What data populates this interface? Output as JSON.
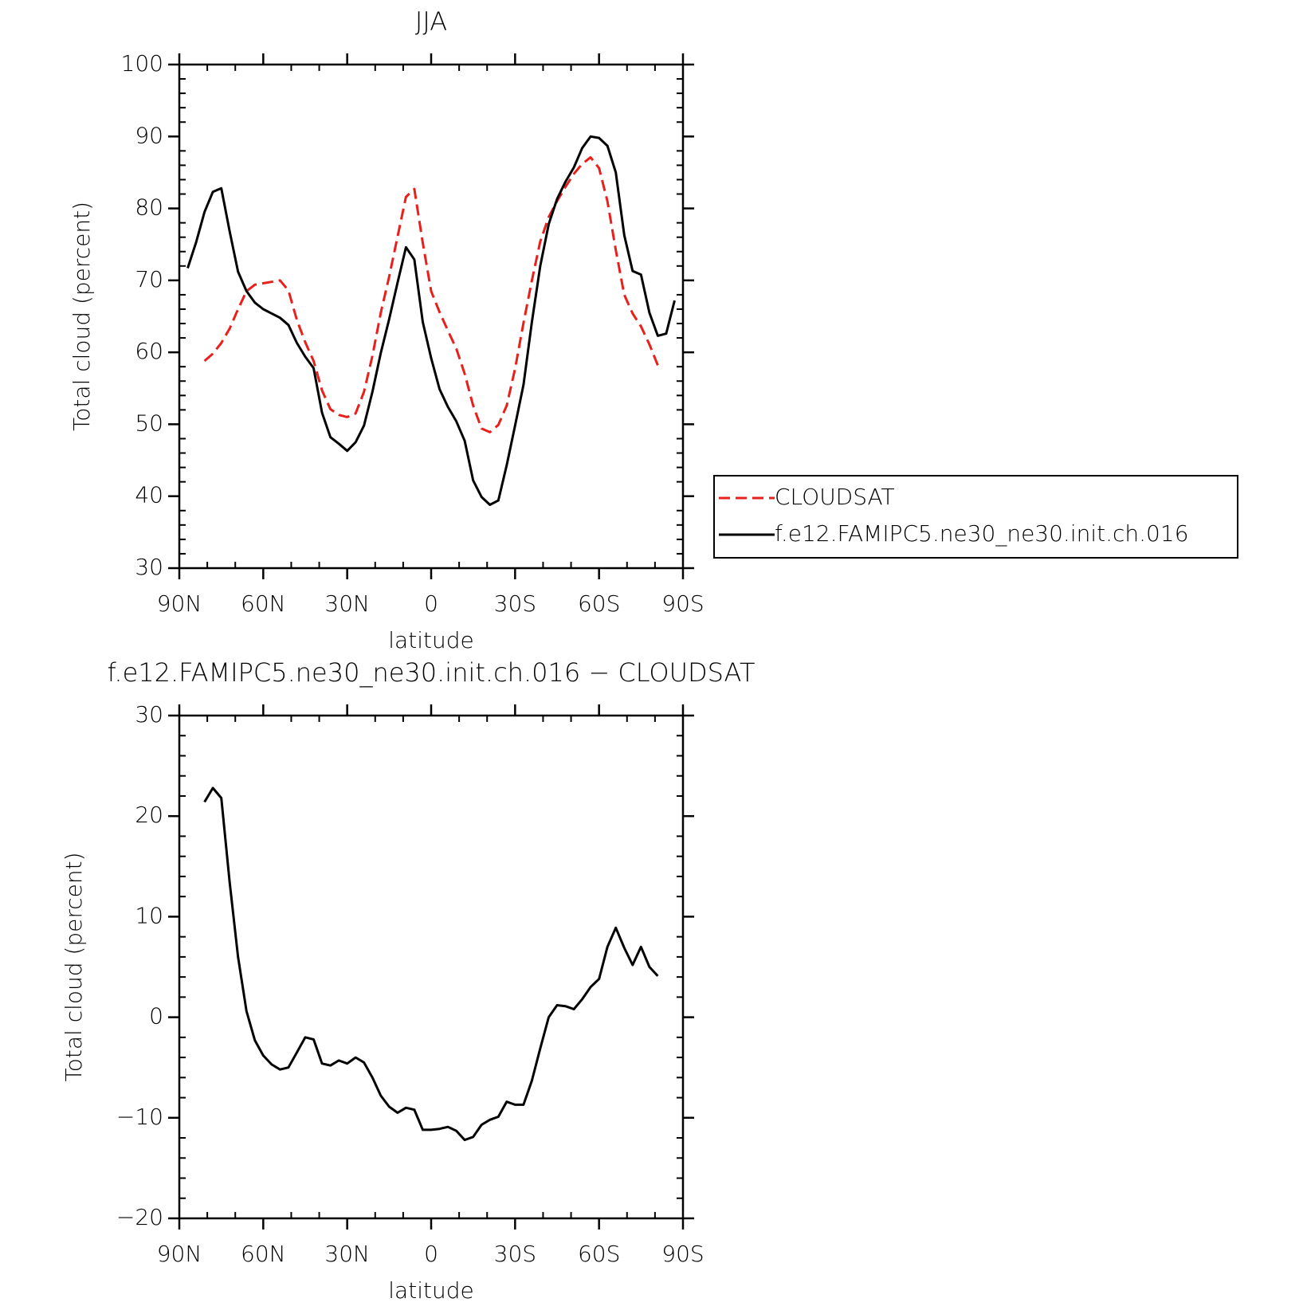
{
  "chart_data": [
    {
      "type": "line",
      "title": "JJA",
      "x_label": "latitude",
      "y_label": "Total cloud (percent)",
      "x": [
        87,
        84,
        81,
        78,
        75,
        72,
        69,
        66,
        63,
        60,
        57,
        54,
        51,
        48,
        45,
        42,
        39,
        36,
        33,
        30,
        27,
        24,
        21,
        18,
        15,
        12,
        9,
        6,
        3,
        0,
        -3,
        -6,
        -9,
        -12,
        -15,
        -18,
        -21,
        -24,
        -27,
        -30,
        -33,
        -36,
        -39,
        -42,
        -45,
        -48,
        -51,
        -54,
        -57,
        -60,
        -63,
        -66,
        -69,
        -72,
        -75,
        -78,
        -81,
        -84,
        -87
      ],
      "xlim": [
        90,
        -90
      ],
      "xticks": [
        {
          "value": 90,
          "label": "90N"
        },
        {
          "value": 60,
          "label": "60N"
        },
        {
          "value": 30,
          "label": "30N"
        },
        0,
        {
          "value": -30,
          "label": "30S"
        },
        {
          "value": -60,
          "label": "60S"
        },
        {
          "value": -90,
          "label": "90S"
        }
      ],
      "ylim": [
        30,
        100
      ],
      "yticks": [
        30,
        40,
        50,
        60,
        70,
        80,
        90,
        100
      ],
      "legend": "right",
      "series": [
        {
          "name": "CLOUDSAT",
          "color": "#e8201c",
          "style": "dashed",
          "values": [
            null,
            null,
            58.8,
            59.8,
            61.3,
            63.3,
            66,
            68.5,
            69.4,
            69.6,
            69.8,
            70,
            68.6,
            64.5,
            61.4,
            58.8,
            54.7,
            52.1,
            51.3,
            51,
            51.5,
            54.5,
            59.5,
            65.5,
            70.5,
            76.1,
            81.6,
            82.7,
            75.2,
            68.5,
            65.6,
            63,
            60.5,
            57,
            52.6,
            49.4,
            48.9,
            49.9,
            52.6,
            57.7,
            64.1,
            70,
            75.4,
            78.8,
            81,
            83,
            84.8,
            86.2,
            87.1,
            85.6,
            81,
            74.2,
            68,
            65.4,
            63.6,
            61.1,
            58.2,
            null,
            null
          ]
        },
        {
          "name": "f.e12.FAMIPC5.ne30_ne30.init.ch.016",
          "color": "#000000",
          "style": "solid",
          "values": [
            71.7,
            75.3,
            79.5,
            82.3,
            82.8,
            76.8,
            71.2,
            68.5,
            66.9,
            66,
            65.4,
            64.8,
            63.8,
            61.3,
            59.4,
            57.8,
            51.6,
            48.2,
            47.3,
            46.3,
            47.5,
            49.8,
            54.5,
            59.9,
            64.6,
            69.7,
            74.6,
            72.9,
            64.2,
            59.2,
            54.9,
            52.4,
            50.4,
            47.7,
            42.2,
            39.9,
            38.8,
            39.4,
            44.3,
            49.8,
            55.5,
            64.2,
            72,
            77.8,
            81.3,
            83.7,
            85.7,
            88.4,
            90,
            89.8,
            88.7,
            85,
            76.3,
            71.3,
            70.8,
            65.5,
            62.3,
            62.6,
            67.2
          ]
        }
      ]
    },
    {
      "type": "line",
      "title": "f.e12.FAMIPC5.ne30_ne30.init.ch.016 − CLOUDSAT",
      "x_label": "latitude",
      "y_label": "Total cloud (percent)",
      "x": [
        81,
        78,
        75,
        72,
        69,
        66,
        63,
        60,
        57,
        54,
        51,
        48,
        45,
        42,
        39,
        36,
        33,
        30,
        27,
        24,
        21,
        18,
        15,
        12,
        9,
        6,
        3,
        0,
        -3,
        -6,
        -9,
        -12,
        -15,
        -18,
        -21,
        -24,
        -27,
        -30,
        -33,
        -36,
        -39,
        -42,
        -45,
        -48,
        -51,
        -54,
        -57,
        -60,
        -63,
        -66,
        -69,
        -72,
        -75,
        -78,
        -81
      ],
      "xlim": [
        90,
        -90
      ],
      "xticks": [
        {
          "value": 90,
          "label": "90N"
        },
        {
          "value": 60,
          "label": "60N"
        },
        {
          "value": 30,
          "label": "30N"
        },
        0,
        {
          "value": -30,
          "label": "30S"
        },
        {
          "value": -60,
          "label": "60S"
        },
        {
          "value": -90,
          "label": "90S"
        }
      ],
      "ylim": [
        -20,
        30
      ],
      "yticks": [
        {
          "value": -20,
          "label": "−20"
        },
        {
          "value": -10,
          "label": "−10"
        },
        0,
        10,
        20,
        30
      ],
      "series": [
        {
          "color": "#000000",
          "style": "solid",
          "values": [
            21.4,
            22.8,
            21.8,
            13.4,
            6,
            0.6,
            -2.3,
            -3.8,
            -4.7,
            -5.2,
            -5,
            -3.5,
            -2,
            -2.2,
            -4.6,
            -4.8,
            -4.3,
            -4.6,
            -4,
            -4.5,
            -6,
            -7.8,
            -8.9,
            -9.5,
            -9,
            -9.2,
            -11.2,
            -11.2,
            -11.1,
            -10.9,
            -11.3,
            -12.2,
            -11.9,
            -10.7,
            -10.2,
            -9.9,
            -8.4,
            -8.7,
            -8.7,
            -6.3,
            -3.1,
            0,
            1.2,
            1.1,
            0.8,
            1.8,
            3,
            3.8,
            7,
            8.9,
            6.9,
            5.2,
            7,
            5,
            4.1
          ]
        }
      ]
    }
  ]
}
